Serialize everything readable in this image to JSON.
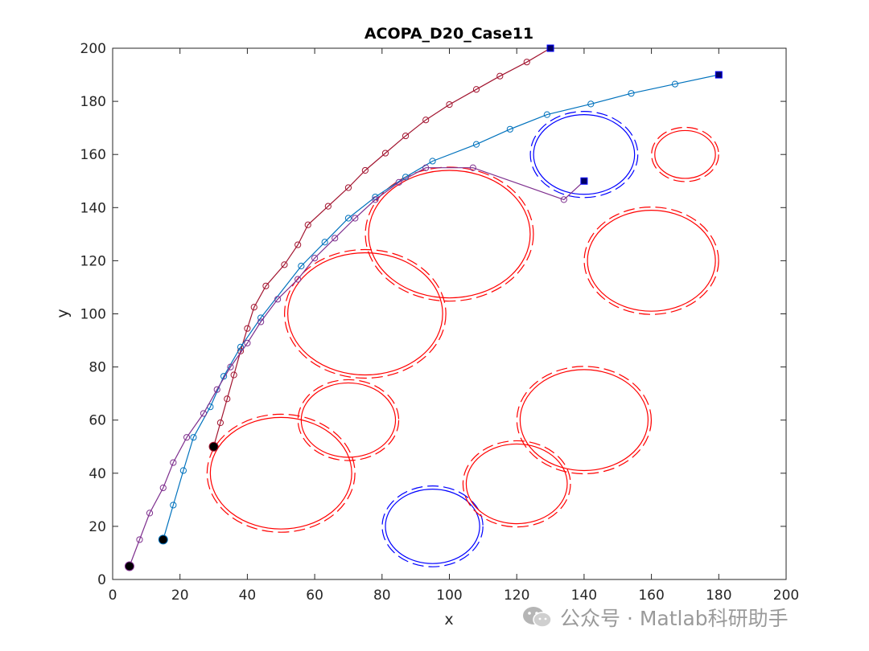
{
  "watermark": {
    "text": "公众号 · Matlab科研助手",
    "icon": "wechat-icon"
  },
  "chart_data": {
    "type": "line",
    "title": "ACOPA_D20_Case11",
    "xlabel": "x",
    "ylabel": "y",
    "xlim": [
      0,
      200
    ],
    "ylim": [
      0,
      200
    ],
    "xticks": [
      0,
      20,
      40,
      60,
      80,
      100,
      120,
      140,
      160,
      180,
      200
    ],
    "yticks": [
      0,
      20,
      40,
      60,
      80,
      100,
      120,
      140,
      160,
      180,
      200
    ],
    "grid": false,
    "box": true,
    "obstacles": [
      {
        "cx": 50,
        "cy": 40,
        "rx": 21,
        "ry": 21,
        "color": "#ff0000"
      },
      {
        "cx": 70,
        "cy": 60,
        "rx": 14,
        "ry": 14,
        "color": "#ff0000"
      },
      {
        "cx": 75,
        "cy": 100,
        "rx": 23,
        "ry": 23,
        "color": "#ff0000"
      },
      {
        "cx": 100,
        "cy": 130,
        "rx": 24,
        "ry": 24,
        "color": "#ff0000"
      },
      {
        "cx": 95,
        "cy": 20,
        "rx": 14,
        "ry": 14,
        "color": "#0000ff"
      },
      {
        "cx": 120,
        "cy": 36,
        "rx": 15,
        "ry": 15,
        "color": "#ff0000"
      },
      {
        "cx": 140,
        "cy": 60,
        "rx": 19,
        "ry": 19,
        "color": "#ff0000"
      },
      {
        "cx": 160,
        "cy": 120,
        "rx": 19,
        "ry": 19,
        "color": "#ff0000"
      },
      {
        "cx": 140,
        "cy": 160,
        "rx": 15,
        "ry": 15,
        "color": "#0000ff"
      },
      {
        "cx": 170,
        "cy": 160,
        "rx": 9,
        "ry": 9,
        "color": "#ff0000"
      }
    ],
    "series": [
      {
        "color": "#a2142f",
        "start": [
          30,
          50
        ],
        "goal": [
          130,
          200
        ],
        "points": [
          [
            30,
            50
          ],
          [
            32,
            59
          ],
          [
            34,
            68
          ],
          [
            36,
            77
          ],
          [
            38,
            86
          ],
          [
            40,
            94.5
          ],
          [
            42,
            102.5
          ],
          [
            45.5,
            110.5
          ],
          [
            51,
            118.5
          ],
          [
            55,
            126
          ],
          [
            58,
            133.5
          ],
          [
            64,
            140.5
          ],
          [
            70,
            147.5
          ],
          [
            75,
            154
          ],
          [
            81,
            160.5
          ],
          [
            87,
            167
          ],
          [
            93,
            173
          ],
          [
            100,
            178.8
          ],
          [
            108,
            184.5
          ],
          [
            115,
            189.5
          ],
          [
            123,
            194.8
          ],
          [
            130,
            200
          ]
        ]
      },
      {
        "color": "#0072bd",
        "start": [
          15,
          15
        ],
        "goal": [
          180,
          190
        ],
        "points": [
          [
            15,
            15
          ],
          [
            18,
            28
          ],
          [
            21,
            41
          ],
          [
            24,
            53.5
          ],
          [
            29,
            65
          ],
          [
            33,
            76.5
          ],
          [
            38,
            87.5
          ],
          [
            44,
            98.5
          ],
          [
            56,
            118
          ],
          [
            63,
            127
          ],
          [
            70,
            136
          ],
          [
            78,
            144
          ],
          [
            87,
            151.5
          ],
          [
            95,
            157.5
          ],
          [
            108,
            163.8
          ],
          [
            118,
            169.5
          ],
          [
            129,
            175
          ],
          [
            142,
            179
          ],
          [
            154,
            183
          ],
          [
            167,
            186.5
          ],
          [
            180,
            190
          ]
        ]
      },
      {
        "color": "#7e2f8e",
        "start": [
          5,
          5
        ],
        "goal": [
          140,
          150
        ],
        "points": [
          [
            5,
            5
          ],
          [
            8,
            15
          ],
          [
            11,
            25
          ],
          [
            15,
            34.5
          ],
          [
            18,
            44
          ],
          [
            22,
            53.5
          ],
          [
            27,
            62.5
          ],
          [
            31,
            71.5
          ],
          [
            35,
            80
          ],
          [
            40,
            89
          ],
          [
            44,
            97
          ],
          [
            49,
            105.5
          ],
          [
            55,
            113
          ],
          [
            60,
            121
          ],
          [
            66,
            128.5
          ],
          [
            72,
            136
          ],
          [
            78,
            143
          ],
          [
            85,
            149.5
          ],
          [
            93,
            155
          ],
          [
            107,
            155
          ],
          [
            134,
            143
          ],
          [
            140,
            150
          ]
        ]
      }
    ]
  }
}
